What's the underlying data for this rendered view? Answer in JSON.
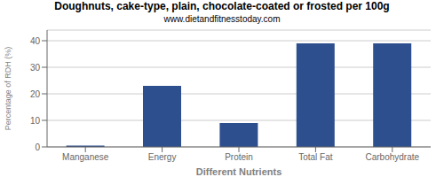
{
  "chart_data": {
    "type": "bar",
    "title": "Doughnuts, cake-type, plain, chocolate-coated or frosted per 100g",
    "subtitle": "www.dietandfitnesstoday.com",
    "categories": [
      "Manganese",
      "Energy",
      "Protein",
      "Total Fat",
      "Carbohydrate"
    ],
    "values": [
      0.5,
      23,
      9,
      39,
      39
    ],
    "color": "#2d4f8e",
    "xlabel": "Different Nutrients",
    "ylabel": "Percentage of RDH (%)",
    "ylim": [
      0,
      44
    ],
    "yticks": [
      0,
      10,
      20,
      30,
      40
    ],
    "grid": true
  }
}
